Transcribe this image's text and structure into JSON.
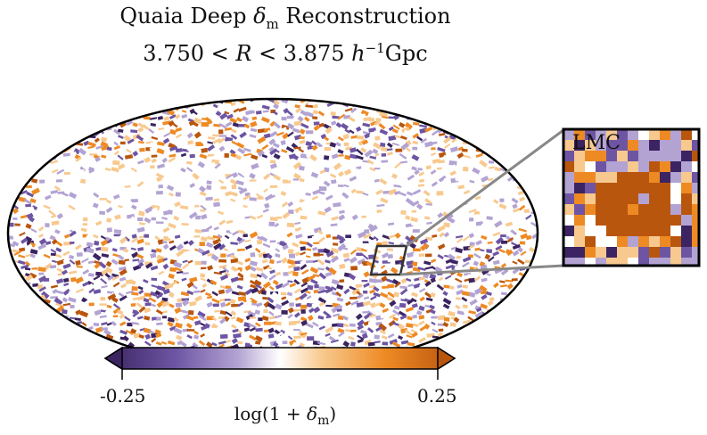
{
  "title": {
    "line1_prefix": "Quaia Deep ",
    "line1_symbol": "δ",
    "line1_sub": "m",
    "line1_suffix": " Reconstruction",
    "line2_left": "3.750 < ",
    "line2_var": "R",
    "line2_mid": " < 3.875 ",
    "line2_h": "h",
    "line2_exp": "−1",
    "line2_unit": "Gpc"
  },
  "inset": {
    "label": "LMC"
  },
  "colorbar": {
    "min_label": "-0.25",
    "max_label": "0.25",
    "label_prefix": "log(1 + ",
    "label_symbol": "δ",
    "label_sub": "m",
    "label_suffix": ")",
    "vmin": -0.25,
    "vmax": 0.25,
    "colors": [
      "#3b2461",
      "#6d55a3",
      "#b3a3d3",
      "#ffffff",
      "#f8c98e",
      "#ee8a24",
      "#b9560e"
    ]
  }
}
